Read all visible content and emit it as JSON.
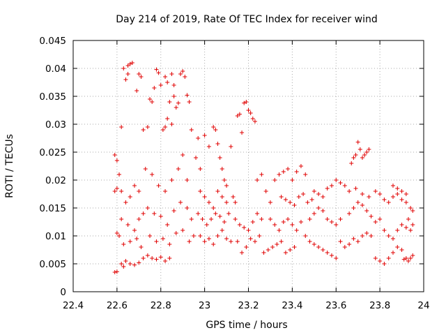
{
  "chart_data": {
    "type": "scatter",
    "title": "Day 214 of 2019, Rate Of TEC Index for receiver wind",
    "xlabel": "GPS time / hours",
    "ylabel": "ROTI / TECUs",
    "xlim": [
      22.4,
      24.0
    ],
    "ylim": [
      0,
      0.045
    ],
    "xticks": [
      "22.4",
      "22.6",
      "22.8",
      "23",
      "23.2",
      "23.4",
      "23.6",
      "23.8",
      "24"
    ],
    "yticks": [
      "0",
      "0.005",
      "0.01",
      "0.015",
      "0.02",
      "0.025",
      "0.03",
      "0.035",
      "0.04",
      "0.045"
    ],
    "grid": true,
    "marker": "+",
    "marker_color": "#e00000",
    "series": [
      {
        "name": "ROTI",
        "points": [
          [
            22.59,
            0.0035
          ],
          [
            22.6,
            0.0036
          ],
          [
            22.6,
            0.0105
          ],
          [
            22.59,
            0.018
          ],
          [
            22.6,
            0.0185
          ],
          [
            22.59,
            0.0245
          ],
          [
            22.6,
            0.0235
          ],
          [
            22.61,
            0.021
          ],
          [
            22.61,
            0.01
          ],
          [
            22.62,
            0.0295
          ],
          [
            22.63,
            0.04
          ],
          [
            22.64,
            0.038
          ],
          [
            22.65,
            0.039
          ],
          [
            22.65,
            0.0405
          ],
          [
            22.66,
            0.0408
          ],
          [
            22.67,
            0.041
          ],
          [
            22.62,
            0.005
          ],
          [
            22.63,
            0.0045
          ],
          [
            22.64,
            0.0055
          ],
          [
            22.66,
            0.005
          ],
          [
            22.68,
            0.0048
          ],
          [
            22.7,
            0.0052
          ],
          [
            22.72,
            0.006
          ],
          [
            22.74,
            0.0065
          ],
          [
            22.76,
            0.006
          ],
          [
            22.78,
            0.0058
          ],
          [
            22.8,
            0.0062
          ],
          [
            22.82,
            0.0055
          ],
          [
            22.84,
            0.006
          ],
          [
            22.62,
            0.018
          ],
          [
            22.64,
            0.016
          ],
          [
            22.66,
            0.017
          ],
          [
            22.68,
            0.019
          ],
          [
            22.7,
            0.018
          ],
          [
            22.62,
            0.013
          ],
          [
            22.65,
            0.012
          ],
          [
            22.68,
            0.011
          ],
          [
            22.7,
            0.013
          ],
          [
            22.72,
            0.014
          ],
          [
            22.63,
            0.0085
          ],
          [
            22.66,
            0.009
          ],
          [
            22.69,
            0.0095
          ],
          [
            22.71,
            0.008
          ],
          [
            22.69,
            0.036
          ],
          [
            22.7,
            0.039
          ],
          [
            22.71,
            0.0385
          ],
          [
            22.72,
            0.029
          ],
          [
            22.74,
            0.0295
          ],
          [
            22.75,
            0.0345
          ],
          [
            22.76,
            0.034
          ],
          [
            22.77,
            0.0365
          ],
          [
            22.78,
            0.0398
          ],
          [
            22.79,
            0.0392
          ],
          [
            22.8,
            0.037
          ],
          [
            22.81,
            0.029
          ],
          [
            22.82,
            0.0295
          ],
          [
            22.82,
            0.0385
          ],
          [
            22.83,
            0.0375
          ],
          [
            22.84,
            0.034
          ],
          [
            22.85,
            0.039
          ],
          [
            22.86,
            0.035
          ],
          [
            22.87,
            0.033
          ],
          [
            22.88,
            0.0338
          ],
          [
            22.89,
            0.039
          ],
          [
            22.9,
            0.0395
          ],
          [
            22.91,
            0.0385
          ],
          [
            22.92,
            0.0352
          ],
          [
            22.93,
            0.034
          ],
          [
            22.94,
            0.029
          ],
          [
            22.83,
            0.031
          ],
          [
            22.85,
            0.03
          ],
          [
            22.86,
            0.037
          ],
          [
            22.73,
            0.022
          ],
          [
            22.76,
            0.021
          ],
          [
            22.79,
            0.019
          ],
          [
            22.82,
            0.018
          ],
          [
            22.85,
            0.02
          ],
          [
            22.88,
            0.022
          ],
          [
            22.9,
            0.0245
          ],
          [
            22.92,
            0.02
          ],
          [
            22.74,
            0.015
          ],
          [
            22.77,
            0.014
          ],
          [
            22.8,
            0.0135
          ],
          [
            22.83,
            0.012
          ],
          [
            22.86,
            0.0145
          ],
          [
            22.89,
            0.016
          ],
          [
            22.92,
            0.015
          ],
          [
            22.94,
            0.013
          ],
          [
            22.75,
            0.01
          ],
          [
            22.78,
            0.009
          ],
          [
            22.81,
            0.0095
          ],
          [
            22.84,
            0.0085
          ],
          [
            22.87,
            0.0105
          ],
          [
            22.9,
            0.011
          ],
          [
            22.93,
            0.009
          ],
          [
            22.95,
            0.01
          ],
          [
            22.96,
            0.024
          ],
          [
            22.97,
            0.0275
          ],
          [
            22.98,
            0.022
          ],
          [
            23.0,
            0.028
          ],
          [
            23.02,
            0.026
          ],
          [
            23.04,
            0.0295
          ],
          [
            23.05,
            0.029
          ],
          [
            23.06,
            0.0265
          ],
          [
            23.07,
            0.024
          ],
          [
            23.08,
            0.022
          ],
          [
            23.09,
            0.02
          ],
          [
            23.1,
            0.019
          ],
          [
            22.98,
            0.018
          ],
          [
            23.0,
            0.017
          ],
          [
            23.02,
            0.016
          ],
          [
            23.04,
            0.015
          ],
          [
            23.06,
            0.018
          ],
          [
            23.08,
            0.017
          ],
          [
            23.1,
            0.016
          ],
          [
            22.97,
            0.014
          ],
          [
            22.99,
            0.013
          ],
          [
            23.01,
            0.012
          ],
          [
            23.03,
            0.013
          ],
          [
            23.05,
            0.014
          ],
          [
            23.07,
            0.0135
          ],
          [
            23.09,
            0.0125
          ],
          [
            23.11,
            0.014
          ],
          [
            22.98,
            0.01
          ],
          [
            23.0,
            0.009
          ],
          [
            23.02,
            0.0095
          ],
          [
            23.04,
            0.0085
          ],
          [
            23.06,
            0.01
          ],
          [
            23.08,
            0.011
          ],
          [
            23.1,
            0.0095
          ],
          [
            23.12,
            0.009
          ],
          [
            23.12,
            0.026
          ],
          [
            23.13,
            0.017
          ],
          [
            23.14,
            0.016
          ],
          [
            23.15,
            0.0315
          ],
          [
            23.16,
            0.0318
          ],
          [
            23.17,
            0.0285
          ],
          [
            23.18,
            0.0338
          ],
          [
            23.19,
            0.034
          ],
          [
            23.2,
            0.0325
          ],
          [
            23.21,
            0.032
          ],
          [
            23.22,
            0.031
          ],
          [
            23.23,
            0.0305
          ],
          [
            23.14,
            0.013
          ],
          [
            23.16,
            0.012
          ],
          [
            23.18,
            0.0115
          ],
          [
            23.2,
            0.011
          ],
          [
            23.22,
            0.0125
          ],
          [
            23.24,
            0.014
          ],
          [
            23.26,
            0.013
          ],
          [
            23.15,
            0.009
          ],
          [
            23.17,
            0.007
          ],
          [
            23.19,
            0.008
          ],
          [
            23.21,
            0.0095
          ],
          [
            23.23,
            0.009
          ],
          [
            23.25,
            0.01
          ],
          [
            23.24,
            0.02
          ],
          [
            23.26,
            0.021
          ],
          [
            23.28,
            0.018
          ],
          [
            23.3,
            0.016
          ],
          [
            23.27,
            0.007
          ],
          [
            23.29,
            0.0075
          ],
          [
            23.31,
            0.008
          ],
          [
            23.33,
            0.0085
          ],
          [
            23.35,
            0.009
          ],
          [
            23.37,
            0.007
          ],
          [
            23.39,
            0.0075
          ],
          [
            23.41,
            0.008
          ],
          [
            23.3,
            0.013
          ],
          [
            23.32,
            0.012
          ],
          [
            23.34,
            0.011
          ],
          [
            23.36,
            0.0125
          ],
          [
            23.38,
            0.013
          ],
          [
            23.4,
            0.012
          ],
          [
            23.42,
            0.011
          ],
          [
            23.44,
            0.0125
          ],
          [
            23.32,
            0.02
          ],
          [
            23.34,
            0.021
          ],
          [
            23.36,
            0.0215
          ],
          [
            23.38,
            0.022
          ],
          [
            23.4,
            0.02
          ],
          [
            23.42,
            0.0215
          ],
          [
            23.44,
            0.0225
          ],
          [
            23.46,
            0.021
          ],
          [
            23.35,
            0.017
          ],
          [
            23.37,
            0.0165
          ],
          [
            23.39,
            0.016
          ],
          [
            23.41,
            0.0155
          ],
          [
            23.43,
            0.017
          ],
          [
            23.45,
            0.0175
          ],
          [
            23.47,
            0.016
          ],
          [
            23.49,
            0.0165
          ],
          [
            23.46,
            0.01
          ],
          [
            23.48,
            0.009
          ],
          [
            23.5,
            0.0085
          ],
          [
            23.52,
            0.008
          ],
          [
            23.54,
            0.0075
          ],
          [
            23.56,
            0.007
          ],
          [
            23.58,
            0.0065
          ],
          [
            23.6,
            0.006
          ],
          [
            23.48,
            0.013
          ],
          [
            23.5,
            0.014
          ],
          [
            23.52,
            0.015
          ],
          [
            23.54,
            0.0145
          ],
          [
            23.56,
            0.013
          ],
          [
            23.58,
            0.0125
          ],
          [
            23.6,
            0.012
          ],
          [
            23.62,
            0.013
          ],
          [
            23.5,
            0.018
          ],
          [
            23.52,
            0.0175
          ],
          [
            23.54,
            0.017
          ],
          [
            23.56,
            0.0185
          ],
          [
            23.58,
            0.019
          ],
          [
            23.6,
            0.02
          ],
          [
            23.62,
            0.0195
          ],
          [
            23.64,
            0.019
          ],
          [
            23.62,
            0.009
          ],
          [
            23.64,
            0.008
          ],
          [
            23.66,
            0.0085
          ],
          [
            23.68,
            0.0095
          ],
          [
            23.7,
            0.009
          ],
          [
            23.72,
            0.01
          ],
          [
            23.74,
            0.0105
          ],
          [
            23.76,
            0.01
          ],
          [
            23.66,
            0.014
          ],
          [
            23.68,
            0.015
          ],
          [
            23.7,
            0.016
          ],
          [
            23.72,
            0.0155
          ],
          [
            23.74,
            0.0145
          ],
          [
            23.76,
            0.0135
          ],
          [
            23.78,
            0.0125
          ],
          [
            23.8,
            0.013
          ],
          [
            23.67,
            0.023
          ],
          [
            23.68,
            0.024
          ],
          [
            23.69,
            0.0245
          ],
          [
            23.7,
            0.0268
          ],
          [
            23.71,
            0.0255
          ],
          [
            23.72,
            0.024
          ],
          [
            23.73,
            0.0245
          ],
          [
            23.74,
            0.025
          ],
          [
            23.75,
            0.0255
          ],
          [
            23.66,
            0.018
          ],
          [
            23.69,
            0.0185
          ],
          [
            23.72,
            0.0175
          ],
          [
            23.75,
            0.017
          ],
          [
            23.78,
            0.018
          ],
          [
            23.8,
            0.0175
          ],
          [
            23.82,
            0.0165
          ],
          [
            23.78,
            0.006
          ],
          [
            23.8,
            0.0055
          ],
          [
            23.82,
            0.005
          ],
          [
            23.84,
            0.006
          ],
          [
            23.86,
            0.007
          ],
          [
            23.88,
            0.008
          ],
          [
            23.9,
            0.0075
          ],
          [
            23.92,
            0.006
          ],
          [
            23.82,
            0.011
          ],
          [
            23.84,
            0.01
          ],
          [
            23.86,
            0.0095
          ],
          [
            23.88,
            0.011
          ],
          [
            23.9,
            0.012
          ],
          [
            23.92,
            0.0115
          ],
          [
            23.94,
            0.011
          ],
          [
            23.95,
            0.012
          ],
          [
            23.84,
            0.016
          ],
          [
            23.86,
            0.017
          ],
          [
            23.88,
            0.0175
          ],
          [
            23.9,
            0.0165
          ],
          [
            23.92,
            0.016
          ],
          [
            23.94,
            0.015
          ],
          [
            23.95,
            0.0145
          ],
          [
            23.93,
            0.013
          ],
          [
            23.86,
            0.019
          ],
          [
            23.88,
            0.0185
          ],
          [
            23.9,
            0.018
          ],
          [
            23.92,
            0.0175
          ],
          [
            23.94,
            0.006
          ],
          [
            23.95,
            0.0065
          ],
          [
            23.93,
            0.0055
          ],
          [
            23.91,
            0.0058
          ]
        ]
      }
    ]
  }
}
